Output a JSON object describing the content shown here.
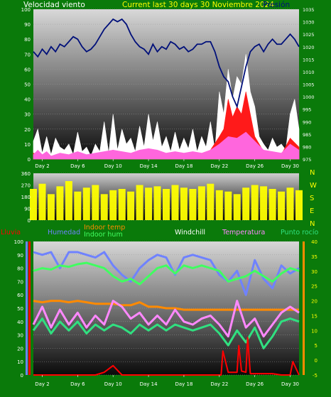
{
  "header": {
    "left": "Velocidad viento",
    "center": "Current last 30 days 30 Noviembre 2024",
    "right": "Presión"
  },
  "colors": {
    "frame": "#0a7a0a",
    "wind": "#ffffff",
    "gust": "#ff1a1a",
    "avg": "#ff66dd",
    "pressure": "#00107a",
    "direction": "#ffff00",
    "rain": "#ff0000",
    "humidity": "#6f82ff",
    "indoor_temp": "#ff8a00",
    "indoor_hum": "#40ff60",
    "windchill": "#ffffff",
    "temperature": "#ff88ff",
    "dewpoint": "#30e080"
  },
  "chart_data": [
    {
      "type": "area",
      "title": "",
      "x_ticks": [
        "Day 2",
        "Day 6",
        "Day 10",
        "Day 14",
        "Day 18",
        "Day 22",
        "Day 26",
        "Day 30"
      ],
      "y_left": {
        "label": "Velocidad viento",
        "ticks": [
          0,
          10,
          20,
          30,
          40,
          50,
          60,
          70,
          80,
          90,
          100
        ],
        "range": [
          0,
          100
        ]
      },
      "y_right": {
        "label": "Presión",
        "ticks": [
          975,
          980,
          985,
          990,
          995,
          1000,
          1005,
          1010,
          1015,
          1020,
          1025,
          1030,
          1035
        ],
        "range": [
          975,
          1035
        ]
      },
      "x_range": [
        1,
        31
      ],
      "series": [
        {
          "name": "wind",
          "color": "wind",
          "style": "area",
          "x": [
            1,
            1.5,
            2,
            2.5,
            3,
            3.5,
            4,
            4.5,
            5,
            5.5,
            6,
            6.5,
            7,
            7.5,
            8,
            8.5,
            9,
            9.5,
            10,
            10.5,
            11,
            11.5,
            12,
            12.5,
            13,
            13.5,
            14,
            14.5,
            15,
            15.5,
            16,
            16.5,
            17,
            17.5,
            18,
            18.5,
            19,
            19.5,
            20,
            20.5,
            21,
            21.5,
            22,
            22.5,
            23,
            23.5,
            24,
            24.5,
            25,
            25.5,
            26,
            26.5,
            27,
            27.5,
            28,
            28.5,
            29,
            29.5,
            30,
            30.5,
            31
          ],
          "values": [
            12,
            20,
            4,
            15,
            3,
            14,
            8,
            6,
            10,
            3,
            18,
            5,
            8,
            2,
            10,
            5,
            25,
            4,
            30,
            6,
            20,
            10,
            14,
            5,
            22,
            8,
            30,
            12,
            25,
            8,
            15,
            5,
            18,
            6,
            14,
            7,
            20,
            5,
            15,
            8,
            25,
            6,
            45,
            30,
            60,
            40,
            55,
            50,
            70,
            45,
            35,
            15,
            10,
            6,
            14,
            8,
            10,
            6,
            30,
            40,
            20
          ]
        },
        {
          "name": "gust",
          "color": "gust",
          "style": "area",
          "x": [
            1,
            2,
            3,
            4,
            5,
            6,
            7,
            8,
            9,
            10,
            11,
            12,
            13,
            14,
            15,
            16,
            17,
            18,
            19,
            20,
            21,
            22,
            22.5,
            23,
            23.5,
            24,
            24.5,
            25,
            25.5,
            26,
            27,
            28,
            29,
            30,
            31
          ],
          "values": [
            4,
            2,
            2,
            3,
            2,
            4,
            2,
            3,
            4,
            6,
            4,
            3,
            5,
            6,
            5,
            3,
            4,
            3,
            4,
            3,
            6,
            15,
            20,
            40,
            28,
            35,
            30,
            45,
            30,
            15,
            5,
            4,
            3,
            14,
            8
          ]
        },
        {
          "name": "avg",
          "color": "avg",
          "style": "area",
          "x": [
            1,
            1.5,
            2,
            2.5,
            3,
            4,
            5,
            6,
            7,
            8,
            9,
            10,
            11,
            12,
            13,
            14,
            15,
            16,
            17,
            18,
            19,
            20,
            21,
            22,
            23,
            24,
            25,
            26,
            27,
            28,
            29,
            30,
            31
          ],
          "values": [
            3,
            6,
            3,
            5,
            2,
            4,
            3,
            5,
            3,
            4,
            5,
            6,
            5,
            4,
            6,
            7,
            6,
            4,
            5,
            4,
            5,
            4,
            6,
            10,
            15,
            14,
            18,
            12,
            6,
            5,
            4,
            10,
            6
          ]
        },
        {
          "name": "pressure",
          "color": "pressure",
          "style": "line",
          "axis": "right",
          "x": [
            1,
            1.5,
            2,
            2.5,
            3,
            3.5,
            4,
            4.5,
            5,
            5.5,
            6,
            6.5,
            7,
            7.5,
            8,
            8.5,
            9,
            9.5,
            10,
            10.5,
            11,
            11.5,
            12,
            12.5,
            13,
            13.5,
            14,
            14.5,
            15,
            15.5,
            16,
            16.5,
            17,
            17.5,
            18,
            18.5,
            19,
            19.5,
            20,
            20.5,
            21,
            21.5,
            22,
            22.5,
            23,
            23.5,
            24,
            24.5,
            25,
            25.5,
            26,
            26.5,
            27,
            27.5,
            28,
            28.5,
            29,
            29.5,
            30,
            30.5,
            31
          ],
          "values": [
            1018,
            1016,
            1019,
            1017,
            1020,
            1018,
            1021,
            1020,
            1022,
            1024,
            1023,
            1020,
            1018,
            1019,
            1021,
            1024,
            1027,
            1029,
            1031,
            1030,
            1031,
            1029,
            1025,
            1022,
            1020,
            1019,
            1017,
            1021,
            1018,
            1020,
            1019,
            1022,
            1021,
            1019,
            1020,
            1018,
            1019,
            1021,
            1021,
            1022,
            1022,
            1018,
            1012,
            1008,
            1006,
            1000,
            996,
            1004,
            1012,
            1018,
            1020,
            1021,
            1018,
            1021,
            1023,
            1021,
            1021,
            1023,
            1025,
            1023,
            1020
          ]
        }
      ]
    },
    {
      "type": "bar",
      "title": "",
      "y_left": {
        "ticks": [
          0,
          90,
          180,
          270,
          360
        ],
        "range": [
          0,
          360
        ]
      },
      "y_right": {
        "labels": [
          "N",
          "W",
          "S",
          "E",
          "N"
        ]
      },
      "x_range": [
        1,
        31
      ],
      "series": [
        {
          "name": "direction",
          "color": "direction",
          "x": [
            1,
            2,
            3,
            4,
            5,
            6,
            7,
            8,
            9,
            10,
            11,
            12,
            13,
            14,
            15,
            16,
            17,
            18,
            19,
            20,
            21,
            22,
            23,
            24,
            25,
            26,
            27,
            28,
            29,
            30,
            31
          ],
          "values": [
            240,
            280,
            200,
            260,
            300,
            220,
            250,
            270,
            200,
            230,
            240,
            220,
            270,
            250,
            260,
            240,
            270,
            250,
            240,
            260,
            280,
            230,
            220,
            200,
            250,
            270,
            260,
            240,
            220,
            250,
            230
          ]
        }
      ]
    },
    {
      "type": "line",
      "title": "",
      "x_ticks": [
        "Day 2",
        "Day 6",
        "Day 10",
        "Day 14",
        "Day 18",
        "Day 22",
        "Day 26",
        "Day 30"
      ],
      "legend": [
        {
          "label": "Lluvia",
          "color": "rain"
        },
        {
          "label": "Humedad",
          "color": "humidity"
        },
        {
          "label": "Indoor temp",
          "color": "indoor_temp"
        },
        {
          "label": "Indoor hum",
          "color": "indoor_hum"
        },
        {
          "label": "Windchill",
          "color": "windchill"
        },
        {
          "label": "Temperatura",
          "color": "temperature"
        },
        {
          "label": "Punto rocío",
          "color": "dewpoint"
        }
      ],
      "y_left": {
        "ticks": [
          0,
          10,
          20,
          30,
          40,
          50,
          60,
          70,
          80,
          90,
          100
        ],
        "range": [
          0,
          100
        ]
      },
      "y_right": {
        "ticks": [
          -5,
          0,
          5,
          10,
          15,
          20,
          25,
          30,
          35,
          40
        ],
        "range": [
          -5,
          40
        ]
      },
      "x_range": [
        1,
        31
      ],
      "series": [
        {
          "name": "humidity",
          "color": "humidity",
          "axis": "left",
          "x": [
            1,
            2,
            3,
            4,
            5,
            6,
            7,
            8,
            9,
            10,
            11,
            12,
            13,
            14,
            15,
            16,
            17,
            18,
            19,
            20,
            21,
            22,
            23,
            24,
            25,
            26,
            27,
            28,
            29,
            30,
            31
          ],
          "values": [
            92,
            90,
            92,
            80,
            92,
            92,
            90,
            88,
            92,
            82,
            75,
            70,
            80,
            86,
            90,
            88,
            75,
            88,
            90,
            88,
            86,
            75,
            70,
            78,
            60,
            86,
            72,
            65,
            82,
            76,
            80
          ]
        },
        {
          "name": "indoor_temp",
          "color": "indoor_temp",
          "axis": "right",
          "x": [
            1,
            2,
            3,
            4,
            5,
            6,
            7,
            8,
            9,
            10,
            11,
            12,
            13,
            14,
            15,
            16,
            17,
            18,
            19,
            20,
            21,
            22,
            23,
            24,
            25,
            26,
            27,
            28,
            29,
            30,
            31
          ],
          "values": [
            20,
            19.5,
            20,
            20,
            19.5,
            20,
            19.5,
            19,
            19,
            19,
            18.5,
            18.5,
            19.5,
            18,
            18,
            17.5,
            17.5,
            17,
            17,
            17,
            17,
            17,
            17,
            17,
            17,
            17,
            17,
            17,
            17,
            17,
            17
          ]
        },
        {
          "name": "indoor_hum",
          "color": "indoor_hum",
          "axis": "left",
          "x": [
            1,
            2,
            3,
            4,
            5,
            6,
            7,
            8,
            9,
            10,
            11,
            12,
            13,
            14,
            15,
            16,
            17,
            18,
            19,
            20,
            21,
            22,
            23,
            24,
            25,
            26,
            27,
            28,
            29,
            30,
            31
          ],
          "values": [
            78,
            80,
            79,
            82,
            81,
            83,
            84,
            82,
            80,
            74,
            70,
            72,
            68,
            74,
            80,
            82,
            76,
            82,
            80,
            82,
            80,
            78,
            70,
            72,
            74,
            78,
            74,
            70,
            76,
            80,
            78
          ]
        },
        {
          "name": "temperature",
          "color": "temperature",
          "axis": "right",
          "x": [
            1,
            2,
            3,
            4,
            5,
            6,
            7,
            8,
            9,
            10,
            11,
            12,
            13,
            14,
            15,
            16,
            17,
            18,
            19,
            20,
            21,
            22,
            23,
            24,
            25,
            26,
            27,
            28,
            29,
            30,
            31
          ],
          "values": [
            12,
            18,
            11,
            17,
            12,
            16,
            11,
            15,
            12,
            20,
            18,
            14,
            16,
            12,
            15,
            12,
            17,
            13,
            12,
            14,
            15,
            12,
            8,
            20,
            11,
            14,
            8,
            12,
            16,
            18,
            16
          ]
        },
        {
          "name": "dewpoint",
          "color": "dewpoint",
          "axis": "right",
          "x": [
            1,
            2,
            3,
            4,
            5,
            6,
            7,
            8,
            9,
            10,
            11,
            12,
            13,
            14,
            15,
            16,
            17,
            18,
            19,
            20,
            21,
            22,
            23,
            24,
            25,
            26,
            27,
            28,
            29,
            30,
            31
          ],
          "values": [
            10,
            14,
            9,
            13,
            10,
            13,
            9,
            12,
            10,
            12,
            11,
            9,
            12,
            10,
            12,
            10,
            12,
            11,
            10,
            11,
            12,
            9,
            5,
            10,
            6,
            11,
            4,
            8,
            13,
            14,
            13
          ]
        },
        {
          "name": "rain",
          "color": "rain",
          "axis": "left",
          "style": "line",
          "x": [
            1,
            2,
            3,
            4,
            5,
            6,
            7,
            8,
            9,
            10,
            11,
            12,
            13,
            14,
            15,
            16,
            17,
            18,
            19,
            20,
            21,
            22,
            22.2,
            22.4,
            23,
            24,
            24.2,
            24.5,
            25,
            25.2,
            25.5,
            26,
            27,
            28,
            29,
            30,
            30.3,
            31
          ],
          "values": [
            0,
            0,
            0,
            0,
            0,
            0,
            0,
            0,
            2,
            7,
            0,
            0,
            0,
            0,
            0,
            0,
            0,
            0,
            0,
            0,
            0,
            0,
            0,
            18,
            2,
            2,
            22,
            3,
            2,
            28,
            1,
            1,
            1,
            1,
            0,
            0,
            10,
            0
          ]
        }
      ]
    }
  ]
}
